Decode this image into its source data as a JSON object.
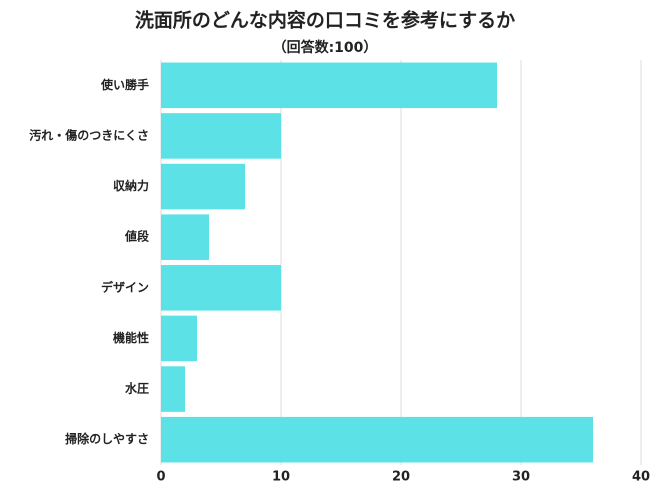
{
  "chart_data": {
    "type": "barh",
    "title": "洗面所のどんな内容の口コミを参考にするか",
    "subtitle": "（回答数:100）",
    "categories": [
      "使い勝手",
      "汚れ・傷のつきにくさ",
      "収納力",
      "値段",
      "デザイン",
      "機能性",
      "水圧",
      "掃除のしやすさ"
    ],
    "values": [
      28,
      10,
      7,
      4,
      10,
      3,
      2,
      36
    ],
    "color": "#5ce1e6",
    "xlim": [
      0,
      40
    ],
    "xticks": [
      0,
      10,
      20,
      30,
      40
    ],
    "grid": true
  }
}
